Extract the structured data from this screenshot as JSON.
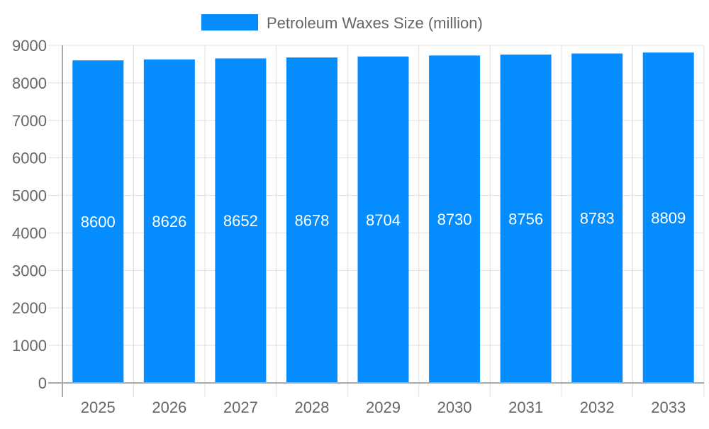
{
  "chart_data": {
    "type": "bar",
    "title": "",
    "xlabel": "",
    "ylabel": "",
    "categories": [
      "2025",
      "2026",
      "2027",
      "2028",
      "2029",
      "2030",
      "2031",
      "2032",
      "2033"
    ],
    "series": [
      {
        "name": "Petroleum Waxes Size (million)",
        "values": [
          8600,
          8626,
          8652,
          8678,
          8704,
          8730,
          8756,
          8783,
          8809
        ],
        "color": "#058DFF"
      }
    ],
    "ylim": [
      0,
      9000
    ],
    "yticks": [
      0,
      1000,
      2000,
      3000,
      4000,
      5000,
      6000,
      7000,
      8000,
      9000
    ],
    "grid": true,
    "legend": "top-center",
    "data_labels": true,
    "data_label_color": "#ffffff"
  }
}
